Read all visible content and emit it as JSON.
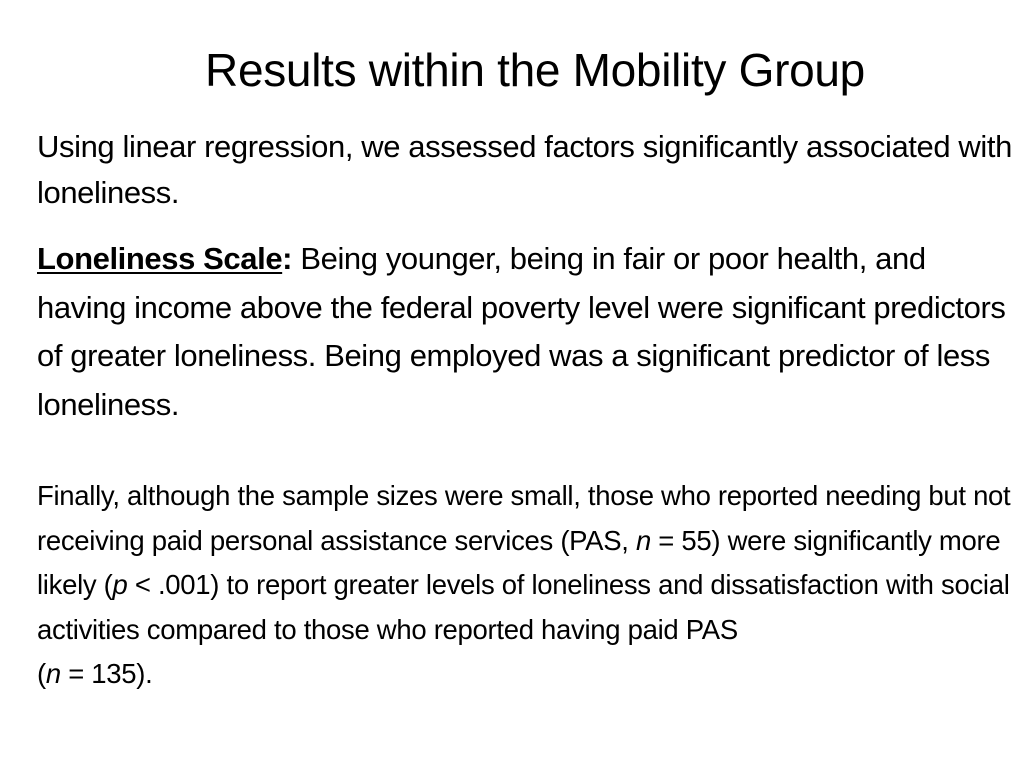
{
  "title": "Results within the Mobility Group",
  "paragraph1": "Using linear regression, we assessed factors significantly associated with loneliness.",
  "paragraph2": {
    "term": "Loneliness Scale",
    "colon": ":",
    "text": " Being younger, being in fair or poor health, and having income above the federal poverty level were significant predictors of greater loneliness. Being employed was a significant predictor of less loneliness."
  },
  "paragraph3": {
    "part1": "Finally, although the sample sizes were small, those who reported needing but not receiving paid personal assistance services (PAS, ",
    "n_symbol_1": "n",
    "part2": " = 55) were significantly more likely (",
    "p_symbol": "p",
    "part3": " < .001) to report greater levels of loneliness and dissatisfaction with social activities compared to those who reported having paid PAS",
    "part4": "(",
    "n_symbol_2": "n",
    "part5": " = 135)."
  }
}
